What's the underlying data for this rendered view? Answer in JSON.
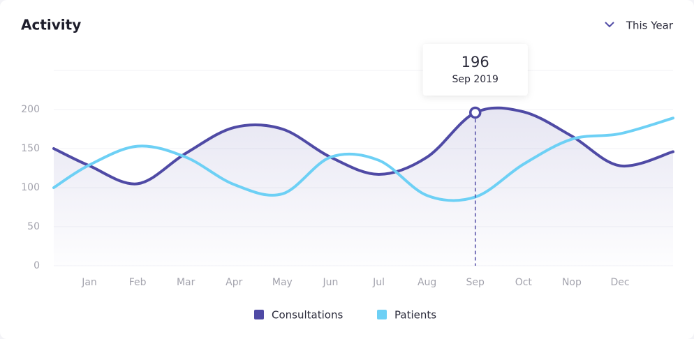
{
  "filter": "This Year",
  "chart_data": {
    "type": "line",
    "title": "Activity",
    "categories": [
      null,
      "Jan",
      "Feb",
      "Mar",
      "Apr",
      "May",
      "Jun",
      "Jul",
      "Aug",
      "Sep",
      "Oct",
      "Nop",
      "Dec",
      null
    ],
    "series": [
      {
        "name": "Consultations",
        "color": "#4f4aa5",
        "values": [
          150,
          128,
          105,
          144,
          177,
          175,
          139,
          117,
          139,
          196,
          197,
          166,
          128,
          146
        ]
      },
      {
        "name": "Patients",
        "color": "#6dd0f5",
        "values": [
          100,
          129,
          153,
          139,
          104,
          92,
          139,
          135,
          90,
          88,
          130,
          162,
          169,
          189
        ]
      }
    ],
    "ylim": [
      0,
      250
    ],
    "yticks": [
      0,
      50,
      100,
      150,
      200
    ],
    "grid": true,
    "legend": "bottom",
    "tooltip": {
      "date": "Sep 2019"
    }
  }
}
